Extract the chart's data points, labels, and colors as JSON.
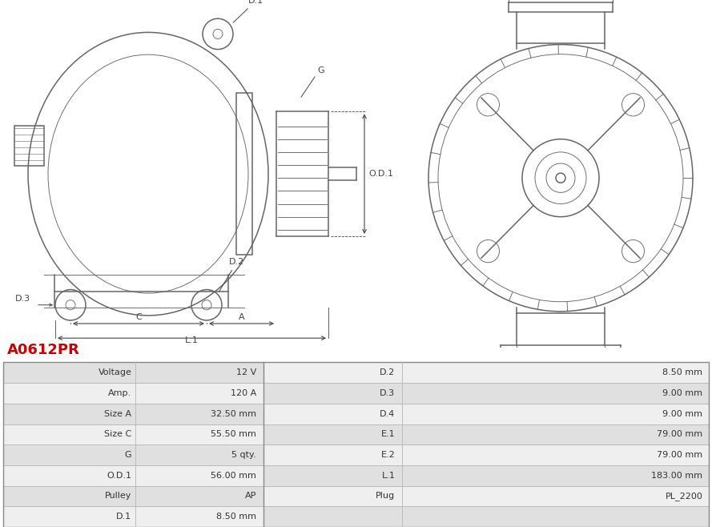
{
  "title": "A0612PR",
  "title_color": "#cc0000",
  "bg_color": "#ffffff",
  "table_row_bg_odd": "#e0e0e0",
  "table_row_bg_even": "#efefef",
  "rows": [
    [
      "Voltage",
      "12 V",
      "D.2",
      "8.50 mm"
    ],
    [
      "Amp.",
      "120 A",
      "D.3",
      "9.00 mm"
    ],
    [
      "Size A",
      "32.50 mm",
      "D.4",
      "9.00 mm"
    ],
    [
      "Size C",
      "55.50 mm",
      "E.1",
      "79.00 mm"
    ],
    [
      "G",
      "5 qty.",
      "E.2",
      "79.00 mm"
    ],
    [
      "O.D.1",
      "56.00 mm",
      "L.1",
      "183.00 mm"
    ],
    [
      "Pulley",
      "AP",
      "Plug",
      "PL_2200"
    ],
    [
      "D.1",
      "8.50 mm",
      "",
      ""
    ]
  ]
}
